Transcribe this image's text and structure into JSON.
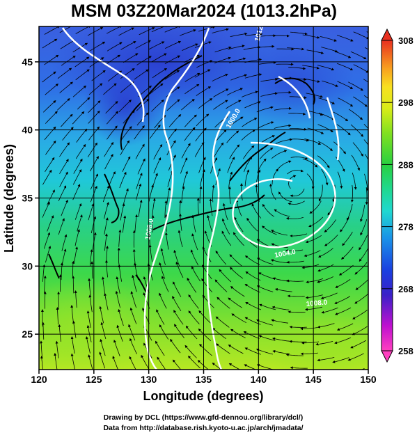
{
  "title": "MSM 03Z20Mar2024 (1013.2hPa)",
  "xaxis": {
    "label": "Longitude (degrees)",
    "ticks": [
      "120",
      "125",
      "130",
      "135",
      "140",
      "145",
      "150"
    ],
    "range": [
      120,
      150
    ]
  },
  "yaxis": {
    "label": "Latitude  (degrees)",
    "ticks": [
      "25",
      "30",
      "35",
      "40",
      "45"
    ],
    "range": [
      22.4,
      47.6
    ]
  },
  "colorbar": {
    "ticks": [
      "308",
      "298",
      "288",
      "278",
      "268",
      "258"
    ],
    "range": [
      258,
      308
    ],
    "colors": [
      "#ff3fbf",
      "#b000d0",
      "#2020d0",
      "#2f6fe6",
      "#1fb8e0",
      "#20d8c0",
      "#28d060",
      "#60e020",
      "#c8e818",
      "#f0f020",
      "#f8b020",
      "#f06020",
      "#e83020"
    ]
  },
  "contour_labels": [
    "1012.0",
    "1000.0",
    "1008.0",
    "1004.0",
    "1008.0"
  ],
  "footer": {
    "line1": "Drawing by DCL (https://www.gfd-dennou.org/library/dcl/)",
    "line2": "Data from http://database.rish.kyoto-u.ac.jp/arch/jmadata/"
  }
}
